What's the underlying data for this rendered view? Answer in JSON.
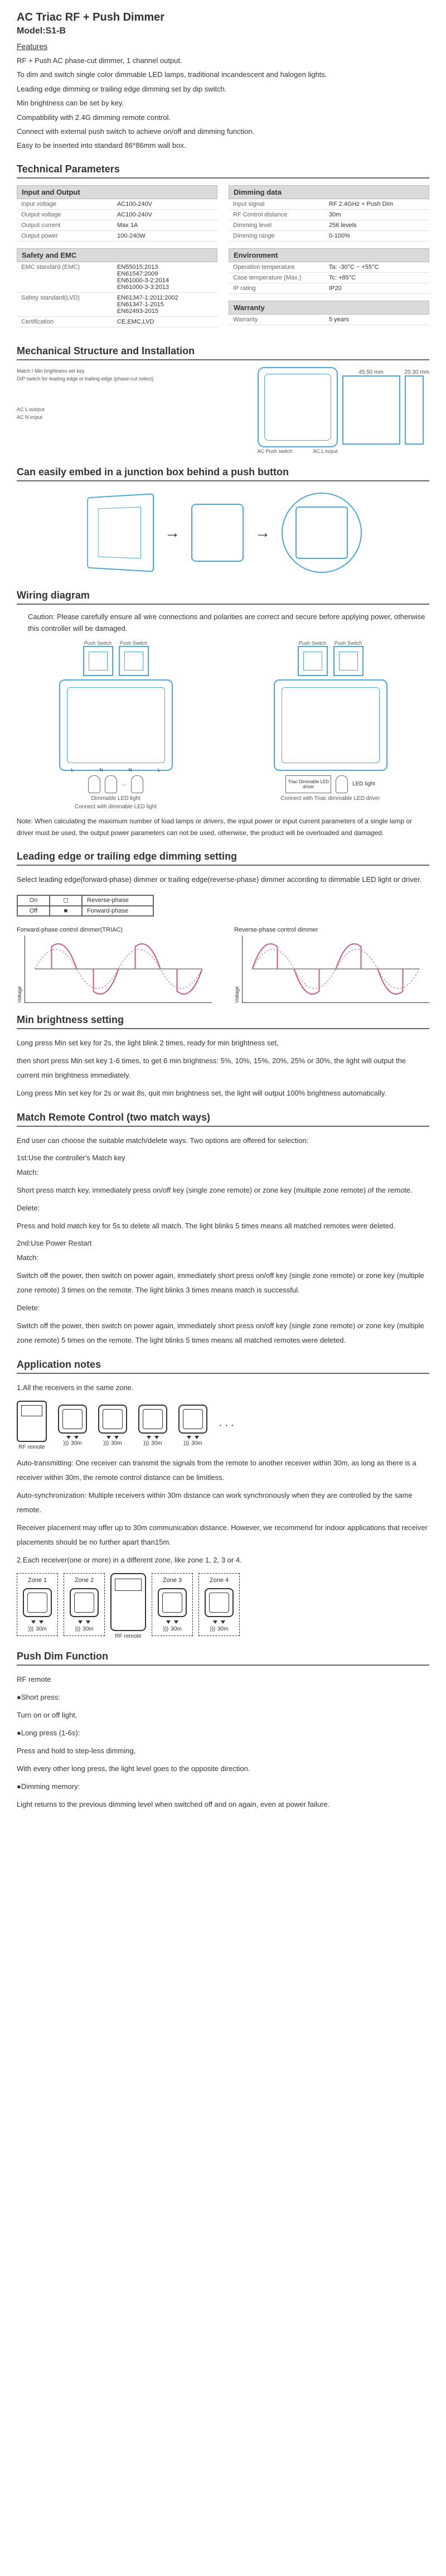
{
  "title": "AC Triac RF + Push Dimmer",
  "model": "Model:S1-B",
  "features_label": "Features",
  "features": [
    "RF + Push AC phase-cut dimmer, 1 channel output.",
    "To dim and switch single color dimmable LED lamps, traditional incandescent and halogen lights.",
    "Leading edge dimming or trailing edge dimming set by dip switch.",
    "Min brightness can be set by key.",
    "Compatibility with 2.4G dimming remote control.",
    "Connect with external push switch to achieve on/off and dimming function.",
    "Easy to be inserted into standard 86*86mm wall box."
  ],
  "tech_heading": "Technical Parameters",
  "params": {
    "io_header": "Input and Output",
    "io": [
      {
        "k": "Input voltage",
        "v": "AC100-240V"
      },
      {
        "k": "Output voltage",
        "v": "AC100-240V"
      },
      {
        "k": "Output current",
        "v": "Max 1A"
      },
      {
        "k": "Output power",
        "v": "100-240W"
      }
    ],
    "safety_header": "Safety and EMC",
    "safety": [
      {
        "k": "EMC standard (EMC)",
        "v": "EN55015:2013\nEN61547:2009\nEN61000-3-2:2014\nEN61000-3-3:2013"
      },
      {
        "k": "Safety standard(LVD)",
        "v": "EN61347-1:2011:2002\nEN61347-1-2015\nEN62493-2015"
      },
      {
        "k": "Certification",
        "v": "CE,EMC,LVD"
      }
    ],
    "dimming_header": "Dimming data",
    "dimming": [
      {
        "k": "Input signal",
        "v": "RF 2.4GHz + Push Dim"
      },
      {
        "k": "RF Control distance",
        "v": "30m"
      },
      {
        "k": "Dimming level",
        "v": "256 levels"
      },
      {
        "k": "Dimming range",
        "v": "0-100%"
      }
    ],
    "env_header": "Environment",
    "env": [
      {
        "k": "Operation temperature",
        "v": "Ta: -30°C ~ +55°C"
      },
      {
        "k": "Case temperature (Max.)",
        "v": "Tc: +85°C"
      },
      {
        "k": "IP rating",
        "v": "IP20"
      }
    ],
    "warranty_header": "Warranty",
    "warranty": [
      {
        "k": "Warranty",
        "v": "5 years"
      }
    ]
  },
  "mech_heading": "Mechanical Structure and Installation",
  "mech_annot": {
    "a1": "Match / Min brightness set key",
    "a2": "DIP switch for leading edge or trailing edge (phase-cut select)",
    "a3": "AC L out/put",
    "a4": "AC N in/put",
    "a5": "AC Push switch",
    "a6": "AC L in/put",
    "dim1": "45.50 mm",
    "dim2": "20.30 mm"
  },
  "embed_heading": "Can easily embed in a junction box behind a push button",
  "wiring_heading": "Wiring diagram",
  "caution": "Caution: Please carefully ensure all wire connections and polarities are correct and secure before applying power, otherwise this controller will be damaged.",
  "wiring": {
    "push_switch": "Push Switch",
    "dimmable": "Dimmable LED light",
    "connect1": "Connect with dimmable LED light",
    "driver": "Triac Dimmable LED driver",
    "led": "LED light",
    "connect2": "Connect with Triac dimmable LED driver"
  },
  "wiring_note": "Note: When calculating the maximum number of load lamps or drivers, the input power or input current parameters of a single lamp or driver must be used, the output power parameters can not be used, otherwise, the product will be overloaded and damaged.",
  "edge_heading": "Leading edge or trailing edge dimming setting",
  "edge_text": "Select leading edge(forward-phase) dimmer or trailing edge(reverse-phase) dimmer according to dimmable LED light or driver.",
  "phase": {
    "on": "On",
    "off": "Off",
    "reverse": "Reverse-phase",
    "forward": "Forward-phase"
  },
  "wave": {
    "forward": "Forward-phase control dimmer(TRIAC)",
    "reverse": "Reverse-phase control dimmer",
    "voltage": "Voltage",
    "colors": {
      "line": "#c85a8a",
      "dash": "#c85a8a",
      "axis": "#333"
    }
  },
  "min_heading": "Min brightness setting",
  "min_text": [
    "Long press Min set key for 2s, the light blink 2 times, ready for min brightness set,",
    "then short press Min set key 1-6 times, to get 6 min brightness: 5%, 10%, 15%, 20%, 25% or 30%, the light will output the current min brightness immediately.",
    "Long press Min set key for 2s or wait 8s, quit min brightness set, the light will output 100% brightness automatically."
  ],
  "match_heading": "Match Remote Control (two match ways)",
  "match_intro": "End user can choose the suitable match/delete ways. Two options are offered for selection:",
  "match1_title": "1st:Use the controller's Match key",
  "match_label": "Match:",
  "match1_match": "Short press match key, immediately press on/off key (single zone remote) or zone key (multiple zone remote) of the remote.",
  "delete_label": "Delete:",
  "match1_delete": "Press and hold match key for 5s to delete all match. The light blinks 5 times means all matched remotes were deleted.",
  "match2_title": "2nd:Use Power Restart",
  "match2_match": "Switch off the power, then switch on power again, immediately short press on/off key (single zone remote) or zone key (multiple zone remote) 3 times on the remote. The light blinks 3 times means match is successful.",
  "match2_delete": "Switch off the power, then switch on power again, immediately short press on/off key (single zone remote) or zone key (multiple zone remote) 5 times on the remote. The light blinks 5 times means all matched remotes were deleted.",
  "app_heading": "Application notes",
  "app1": "1.All the receivers in the same zone.",
  "rf_remote": "RF remote",
  "dist30": "30m",
  "app_text": [
    "Auto-transmitting: One receiver can transmit the signals from the remote to another receiver within 30m, as long as there is a receiver within 30m, the remote control distance can be limitless.",
    "Auto-synchronization: Multiple receivers within 30m distance can work synchronously when they are controlled by the same remote.",
    "Receiver placement may offer up to 30m communication distance. However, we recommend for indoor applications that receiver placements should be no further apart than15m.",
    "2.Each receiver(one or more) in a different zone, like zone 1, 2, 3 or 4."
  ],
  "zones": [
    "Zone 1",
    "Zone 2",
    "Zone 3",
    "Zone 4"
  ],
  "push_heading": "Push Dim Function",
  "push_lines": [
    "RF remote",
    "●Short press:",
    "Turn on or off light.",
    "●Long press (1-6s):",
    "Press and hold to step-less dimming,",
    "With every other long press, the light level goes to the opposite direction.",
    "●Dimming memory:",
    "Light returns to the previous dimming level when switched off and on again, even at power failure."
  ]
}
